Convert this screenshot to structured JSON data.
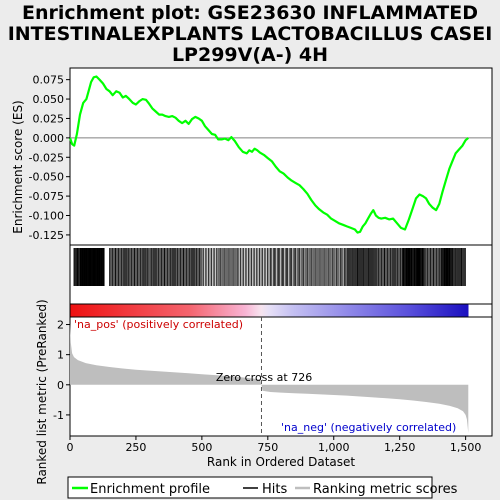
{
  "chart_data": {
    "type": "line",
    "title_lines": [
      "Enrichment plot: GSE23630 INFLAMMATED",
      "INTESTINALEXPLANTS LACTOBACILLUS CASEI",
      "LP299V(A-) 4H"
    ],
    "xlabel": "Rank in Ordered Dataset",
    "es_ylabel": "Enrichment score (ES)",
    "metric_ylabel": "Ranked list metric (PreRanked)",
    "xlim": [
      0,
      1600
    ],
    "x_ticks": [
      0,
      250,
      500,
      750,
      1000,
      1250,
      1500
    ],
    "x_tick_labels": [
      "0",
      "250",
      "500",
      "750",
      "1,000",
      "1,250",
      "1,500"
    ],
    "es_ylim": [
      -0.138,
      0.09
    ],
    "es_ticks": [
      0.075,
      0.05,
      0.025,
      0.0,
      -0.025,
      -0.05,
      -0.075,
      -0.1,
      -0.125
    ],
    "es_tick_labels": [
      "0.075",
      "0.050",
      "0.025",
      "0.000",
      "-0.025",
      "-0.050",
      "-0.075",
      "-0.100",
      "-0.125"
    ],
    "metric_ylim": [
      -1.7,
      2.25
    ],
    "metric_ticks": [
      2,
      1,
      0,
      -1
    ],
    "metric_tick_labels": [
      "2",
      "1",
      "0",
      "-1"
    ],
    "n_genes": 1510,
    "zero_cross": 726,
    "zero_cross_label": "Zero cross at 726",
    "pos_label": "'na_pos' (positively correlated)",
    "neg_label": "'na_neg' (negatively correlated)",
    "enrichment_profile": [
      [
        0,
        0.0
      ],
      [
        8,
        -0.008
      ],
      [
        16,
        -0.01
      ],
      [
        26,
        0.005
      ],
      [
        38,
        0.03
      ],
      [
        50,
        0.045
      ],
      [
        62,
        0.05
      ],
      [
        72,
        0.062
      ],
      [
        80,
        0.072
      ],
      [
        90,
        0.078
      ],
      [
        100,
        0.079
      ],
      [
        112,
        0.075
      ],
      [
        125,
        0.07
      ],
      [
        138,
        0.063
      ],
      [
        150,
        0.06
      ],
      [
        162,
        0.055
      ],
      [
        175,
        0.06
      ],
      [
        188,
        0.058
      ],
      [
        200,
        0.052
      ],
      [
        212,
        0.054
      ],
      [
        225,
        0.05
      ],
      [
        238,
        0.045
      ],
      [
        250,
        0.043
      ],
      [
        262,
        0.047
      ],
      [
        275,
        0.05
      ],
      [
        288,
        0.049
      ],
      [
        300,
        0.044
      ],
      [
        312,
        0.038
      ],
      [
        325,
        0.034
      ],
      [
        338,
        0.03
      ],
      [
        350,
        0.03
      ],
      [
        362,
        0.028
      ],
      [
        375,
        0.027
      ],
      [
        388,
        0.028
      ],
      [
        400,
        0.026
      ],
      [
        412,
        0.022
      ],
      [
        425,
        0.019
      ],
      [
        438,
        0.022
      ],
      [
        450,
        0.018
      ],
      [
        462,
        0.024
      ],
      [
        475,
        0.027
      ],
      [
        488,
        0.025
      ],
      [
        500,
        0.022
      ],
      [
        512,
        0.015
      ],
      [
        525,
        0.01
      ],
      [
        538,
        0.005
      ],
      [
        550,
        0.004
      ],
      [
        562,
        -0.002
      ],
      [
        575,
        -0.002
      ],
      [
        588,
        -0.001
      ],
      [
        600,
        -0.003
      ],
      [
        612,
        0.001
      ],
      [
        625,
        -0.004
      ],
      [
        640,
        -0.012
      ],
      [
        655,
        -0.018
      ],
      [
        670,
        -0.02
      ],
      [
        680,
        -0.016
      ],
      [
        690,
        -0.018
      ],
      [
        700,
        -0.014
      ],
      [
        710,
        -0.016
      ],
      [
        720,
        -0.019
      ],
      [
        735,
        -0.022
      ],
      [
        750,
        -0.026
      ],
      [
        765,
        -0.03
      ],
      [
        780,
        -0.037
      ],
      [
        795,
        -0.043
      ],
      [
        810,
        -0.046
      ],
      [
        825,
        -0.051
      ],
      [
        840,
        -0.055
      ],
      [
        855,
        -0.058
      ],
      [
        870,
        -0.061
      ],
      [
        885,
        -0.066
      ],
      [
        900,
        -0.072
      ],
      [
        915,
        -0.08
      ],
      [
        930,
        -0.087
      ],
      [
        945,
        -0.092
      ],
      [
        960,
        -0.096
      ],
      [
        975,
        -0.099
      ],
      [
        990,
        -0.104
      ],
      [
        1005,
        -0.107
      ],
      [
        1020,
        -0.11
      ],
      [
        1035,
        -0.112
      ],
      [
        1050,
        -0.114
      ],
      [
        1065,
        -0.116
      ],
      [
        1080,
        -0.118
      ],
      [
        1090,
        -0.122
      ],
      [
        1100,
        -0.121
      ],
      [
        1110,
        -0.114
      ],
      [
        1120,
        -0.11
      ],
      [
        1130,
        -0.104
      ],
      [
        1140,
        -0.098
      ],
      [
        1150,
        -0.093
      ],
      [
        1160,
        -0.1
      ],
      [
        1170,
        -0.103
      ],
      [
        1180,
        -0.104
      ],
      [
        1195,
        -0.103
      ],
      [
        1210,
        -0.105
      ],
      [
        1225,
        -0.104
      ],
      [
        1240,
        -0.11
      ],
      [
        1255,
        -0.116
      ],
      [
        1270,
        -0.118
      ],
      [
        1285,
        -0.105
      ],
      [
        1300,
        -0.09
      ],
      [
        1312,
        -0.078
      ],
      [
        1325,
        -0.073
      ],
      [
        1338,
        -0.075
      ],
      [
        1350,
        -0.078
      ],
      [
        1362,
        -0.085
      ],
      [
        1375,
        -0.09
      ],
      [
        1388,
        -0.093
      ],
      [
        1400,
        -0.085
      ],
      [
        1412,
        -0.07
      ],
      [
        1425,
        -0.055
      ],
      [
        1438,
        -0.04
      ],
      [
        1450,
        -0.03
      ],
      [
        1462,
        -0.02
      ],
      [
        1475,
        -0.015
      ],
      [
        1488,
        -0.01
      ],
      [
        1500,
        -0.003
      ],
      [
        1510,
        0.0
      ]
    ],
    "metric_curve": [
      [
        0,
        2.05
      ],
      [
        3,
        1.4
      ],
      [
        8,
        1.05
      ],
      [
        15,
        0.92
      ],
      [
        30,
        0.82
      ],
      [
        60,
        0.72
      ],
      [
        100,
        0.65
      ],
      [
        150,
        0.59
      ],
      [
        200,
        0.54
      ],
      [
        250,
        0.5
      ],
      [
        300,
        0.47
      ],
      [
        350,
        0.44
      ],
      [
        400,
        0.41
      ],
      [
        450,
        0.38
      ],
      [
        500,
        0.35
      ],
      [
        550,
        0.32
      ],
      [
        600,
        0.29
      ],
      [
        650,
        0.25
      ],
      [
        700,
        0.2
      ],
      [
        720,
        0.18
      ],
      [
        726,
        0.0
      ],
      [
        730,
        -0.2
      ],
      [
        760,
        -0.24
      ],
      [
        800,
        -0.26
      ],
      [
        850,
        -0.28
      ],
      [
        900,
        -0.3
      ],
      [
        950,
        -0.32
      ],
      [
        1000,
        -0.34
      ],
      [
        1050,
        -0.36
      ],
      [
        1100,
        -0.39
      ],
      [
        1150,
        -0.42
      ],
      [
        1200,
        -0.45
      ],
      [
        1250,
        -0.48
      ],
      [
        1300,
        -0.52
      ],
      [
        1350,
        -0.57
      ],
      [
        1400,
        -0.63
      ],
      [
        1440,
        -0.7
      ],
      [
        1470,
        -0.78
      ],
      [
        1490,
        -0.88
      ],
      [
        1500,
        -1.0
      ],
      [
        1505,
        -1.15
      ],
      [
        1510,
        -1.6
      ]
    ],
    "hit_segments": [
      [
        15,
        40,
        3
      ],
      [
        40,
        130,
        1.5
      ],
      [
        150,
        300,
        4
      ],
      [
        300,
        500,
        4
      ],
      [
        500,
        560,
        6
      ],
      [
        560,
        640,
        5
      ],
      [
        640,
        760,
        6
      ],
      [
        760,
        900,
        5
      ],
      [
        900,
        1050,
        5
      ],
      [
        1050,
        1150,
        3.5
      ],
      [
        1150,
        1260,
        4
      ],
      [
        1260,
        1340,
        2
      ],
      [
        1340,
        1410,
        4
      ],
      [
        1410,
        1450,
        2
      ],
      [
        1450,
        1500,
        3.5
      ]
    ],
    "heatmap_stops": [
      [
        0.0,
        "#ee1111"
      ],
      [
        0.3,
        "#f4646e"
      ],
      [
        0.44,
        "#f8b4d4"
      ],
      [
        0.48,
        "#f7e4ef"
      ],
      [
        0.5,
        "#e7e0f7"
      ],
      [
        0.56,
        "#c4c0f2"
      ],
      [
        0.7,
        "#8f88e8"
      ],
      [
        0.85,
        "#5a50dc"
      ],
      [
        1.0,
        "#1a0fbf"
      ]
    ],
    "legend": [
      "Enrichment profile",
      "Hits",
      "Ranking metric scores"
    ],
    "colors": {
      "profile": "#00ff00",
      "hits": "#000000",
      "metric_fill": "#bebebe",
      "pos_label": "#cc0000",
      "neg_label": "#0000cc",
      "zero_line": "#808080",
      "background": "#ececec"
    }
  }
}
